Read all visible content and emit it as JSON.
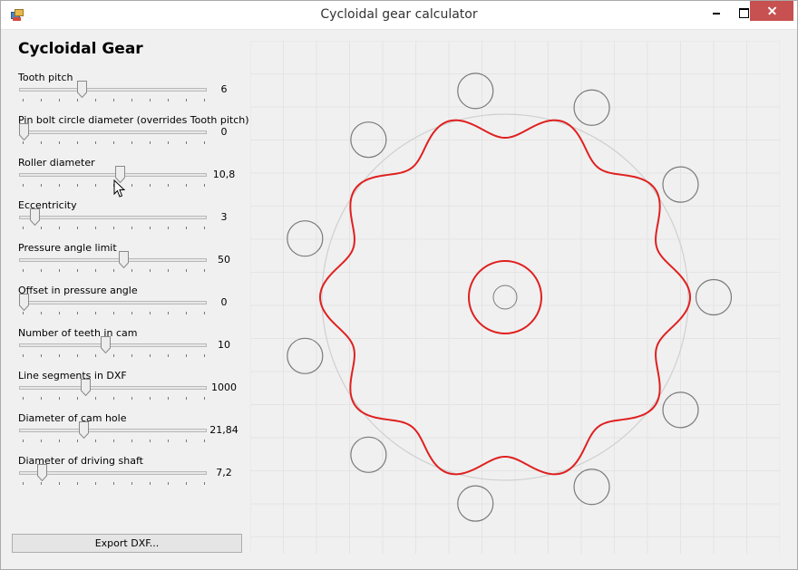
{
  "window": {
    "title": "Cycloidal gear calculator",
    "icons": {
      "app": "app-window-icon",
      "minimize": "minimize-icon",
      "maximize": "maximize-icon",
      "close": "close-icon"
    }
  },
  "panel": {
    "heading": "Cycloidal Gear",
    "params": [
      {
        "label": "Tooth pitch",
        "value": "6",
        "fraction": 0.32
      },
      {
        "label": "Pin bolt circle diameter (overrides Tooth pitch)",
        "value": "0",
        "fraction": 0.0
      },
      {
        "label": "Roller diameter",
        "value": "10,8",
        "fraction": 0.53
      },
      {
        "label": "Eccentricity",
        "value": "3",
        "fraction": 0.06
      },
      {
        "label": "Pressure angle limit",
        "value": "50",
        "fraction": 0.55
      },
      {
        "label": "Offset in pressure angle",
        "value": "0",
        "fraction": 0.0
      },
      {
        "label": "Number of teeth in cam",
        "value": "10",
        "fraction": 0.45
      },
      {
        "label": "Line segments in DXF",
        "value": "1000",
        "fraction": 0.34
      },
      {
        "label": "Diameter of cam hole",
        "value": "21,84",
        "fraction": 0.33
      },
      {
        "label": "Diameter of driving shaft",
        "value": "7,2",
        "fraction": 0.1
      }
    ],
    "export_label": "Export DXF..."
  },
  "drawing": {
    "teeth": 10,
    "roller_count": 11,
    "colors": {
      "profile": "#e02020",
      "rollers": "#7a7a7a",
      "pitch_circle": "#d0d0d0",
      "grid": "#e4e4e4",
      "background": "#f0f0f0"
    }
  },
  "cursor": {
    "icon": "mouse-pointer-icon"
  }
}
